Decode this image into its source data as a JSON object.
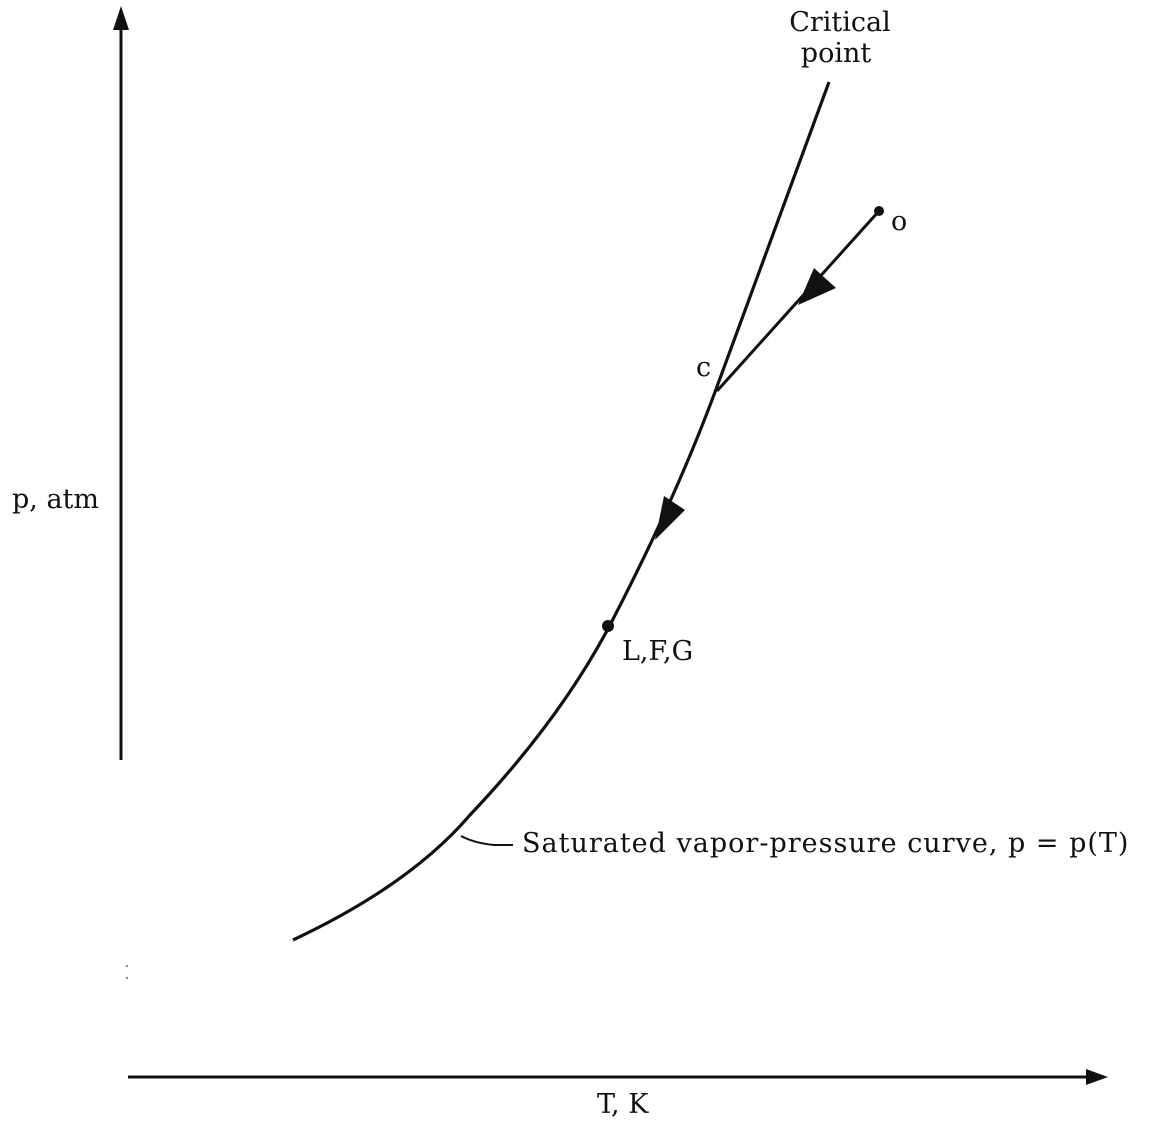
{
  "axes": {
    "y_label": "p, atm",
    "x_label": "T, K"
  },
  "labels": {
    "critical_point_line1": "Critical",
    "critical_point_line2": "point",
    "point_o": "o",
    "point_c": "c",
    "point_lfg": "L,F,G",
    "curve": "Saturated vapor-pressure curve, p = p(T)"
  },
  "colors": {
    "ink": "#111111",
    "background": "#ffffff"
  }
}
